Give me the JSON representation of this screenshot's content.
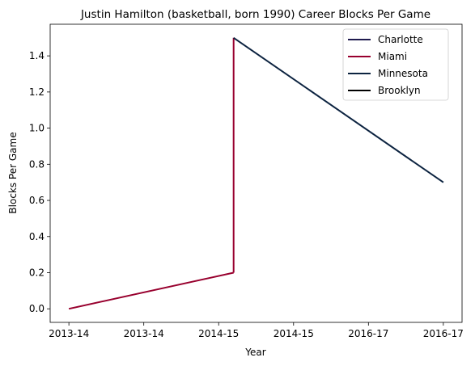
{
  "chart_data": {
    "type": "line",
    "title": "Justin Hamilton (basketball, born 1990) Career Blocks Per Game",
    "xlabel": "Year",
    "ylabel": "Blocks Per Game",
    "x_tick_labels": [
      "2013-14",
      "2013-14",
      "2014-15",
      "2014-15",
      "2016-17",
      "2016-17"
    ],
    "y_ticks": [
      0.0,
      0.2,
      0.4,
      0.6,
      0.8,
      1.0,
      1.2,
      1.4
    ],
    "y_tick_labels": [
      "0.0",
      "0.2",
      "0.4",
      "0.6",
      "0.8",
      "1.0",
      "1.2",
      "1.4"
    ],
    "xlim": [
      -0.25,
      5.25
    ],
    "ylim": [
      -0.075,
      1.575
    ],
    "grid": false,
    "legend_position": "top-right",
    "series": [
      {
        "name": "Charlotte",
        "color": "#1f1a4f",
        "points": []
      },
      {
        "name": "Miami",
        "color": "#98002e",
        "points": [
          [
            0,
            0.0
          ],
          [
            2.2,
            0.2
          ],
          [
            2.2,
            0.2
          ]
        ]
      },
      {
        "name": "Minnesota",
        "color": "#0c2340",
        "points": [
          [
            2.2,
            1.5
          ],
          [
            5,
            0.7
          ]
        ]
      },
      {
        "name": "Brooklyn",
        "color": "#000000",
        "points": []
      }
    ],
    "connectors": [
      {
        "color": "#98002e",
        "points": [
          [
            2.2,
            0.2
          ],
          [
            2.2,
            1.5
          ]
        ]
      }
    ]
  }
}
